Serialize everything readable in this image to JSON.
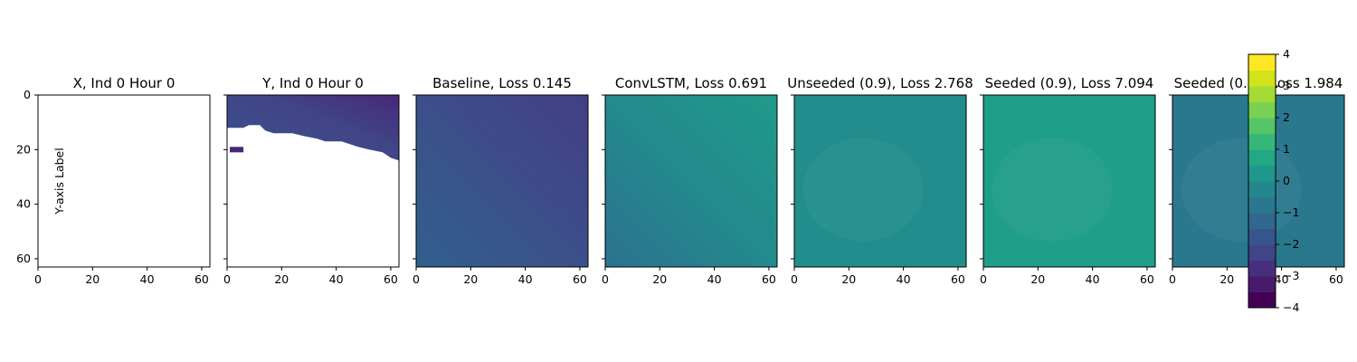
{
  "chart_data": {
    "type": "heatmap",
    "panels": [
      {
        "title": "X, Ind 0 Hour 0",
        "fill": "none"
      },
      {
        "title": "Y, Ind 0 Hour 0",
        "fill": "masked"
      },
      {
        "title": "Baseline, Loss 0.145",
        "fill": "gradient",
        "colors": [
          "#31608d",
          "#3c4f8a",
          "#433e85"
        ]
      },
      {
        "title": "ConvLSTM, Loss 0.691",
        "fill": "gradient",
        "colors": [
          "#2c728e",
          "#238a8d",
          "#1f9a8a"
        ]
      },
      {
        "title": "Unseeded (0.9), Loss 2.768",
        "fill": "flat",
        "colors": [
          "#218e8d"
        ]
      },
      {
        "title": "Seeded (0.9), Loss 7.094",
        "fill": "flat",
        "colors": [
          "#1f9e89"
        ]
      },
      {
        "title": "Seeded (0.9), Loss 1.984",
        "fill": "flat",
        "colors": [
          "#2a788e"
        ]
      }
    ],
    "xlim": [
      0,
      63
    ],
    "ylim": [
      63,
      0
    ],
    "xticks": [
      "0",
      "20",
      "40",
      "60"
    ],
    "yticks": [
      "0",
      "20",
      "40",
      "60"
    ],
    "ylabel": "Y-axis Label",
    "colorbar": {
      "vmin": -4,
      "vmax": 4,
      "ticks": [
        "4",
        "3",
        "2",
        "1",
        "0",
        "−1",
        "−2",
        "−3",
        "−4"
      ],
      "colormap": "viridis",
      "levels": 16
    }
  }
}
